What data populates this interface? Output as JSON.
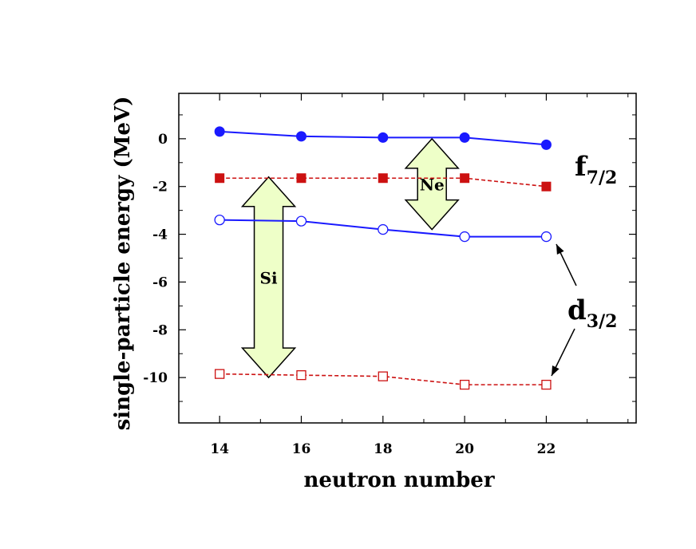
{
  "chart_data": {
    "type": "line",
    "xlabel": "neutron number",
    "ylabel": "single-particle energy (MeV)",
    "xlim": [
      13,
      24.2
    ],
    "ylim": [
      -11.9,
      1.9
    ],
    "x_ticks": [
      14,
      16,
      18,
      20,
      22
    ],
    "y_ticks": [
      0,
      -2,
      -4,
      -6,
      -8,
      -10
    ],
    "grid": false,
    "x": [
      14,
      16,
      18,
      20,
      22
    ],
    "series": [
      {
        "key": "f72_si",
        "values": [
          0.3,
          0.1,
          0.05,
          0.05,
          -0.25
        ],
        "color": "#1a1aff",
        "marker": "filled-circle",
        "line": "solid"
      },
      {
        "key": "f72_ne",
        "values": [
          -1.65,
          -1.65,
          -1.65,
          -1.65,
          -2.0
        ],
        "color": "#cc1111",
        "marker": "filled-square",
        "line": "dashed"
      },
      {
        "key": "d32_si",
        "values": [
          -3.4,
          -3.45,
          -3.8,
          -4.1,
          -4.1
        ],
        "color": "#1a1aff",
        "marker": "open-circle",
        "line": "solid"
      },
      {
        "key": "d32_ne",
        "values": [
          -9.85,
          -9.9,
          -9.95,
          -10.3,
          -10.3
        ],
        "color": "#cc1111",
        "marker": "open-square",
        "line": "dashed"
      }
    ],
    "annotations": {
      "f72_label_main": "f",
      "f72_label_sub": "7/2",
      "d32_label_main": "d",
      "d32_label_sub": "3/2",
      "gap_si": {
        "label": "Si",
        "x": 15.2,
        "from": -1.6,
        "to": -10.0
      },
      "gap_ne": {
        "label": "Ne",
        "x": 19.2,
        "from": 0.0,
        "to": -3.8
      }
    },
    "arrow_fill": "#eeffc8"
  }
}
